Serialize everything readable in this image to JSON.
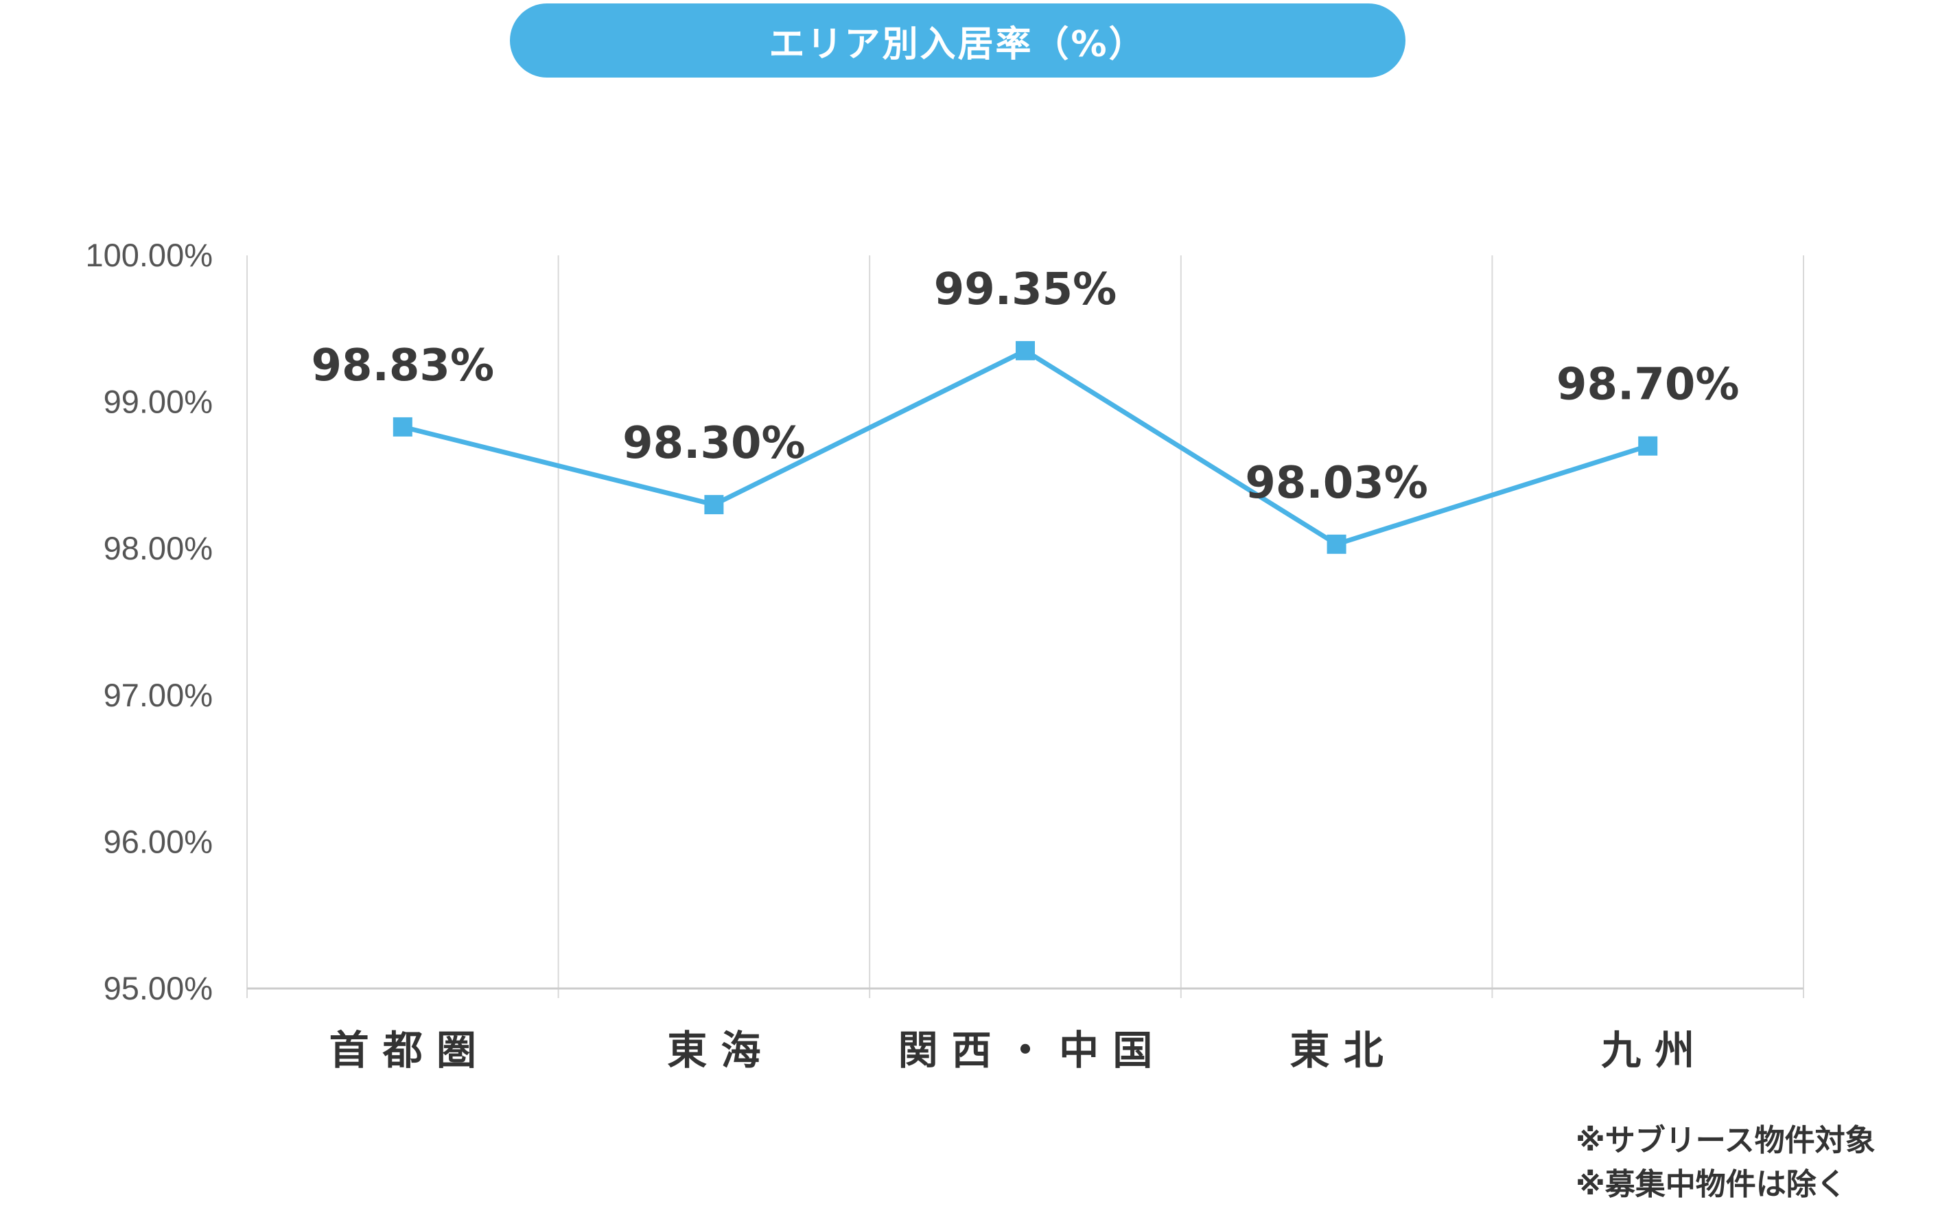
{
  "title": "エリア別入居率（%）",
  "chart_data": {
    "type": "line",
    "categories": [
      "首都圏",
      "東海",
      "関西・中国",
      "東北",
      "九州"
    ],
    "category_labels": [
      "首 都 圏",
      "東 海",
      "関 西 ・ 中 国",
      "東 北",
      "九 州"
    ],
    "values": [
      98.83,
      98.3,
      99.35,
      98.03,
      98.7
    ],
    "data_labels": [
      "98.83%",
      "98.30%",
      "99.35%",
      "98.03%",
      "98.70%"
    ],
    "yticks": [
      95,
      96,
      97,
      98,
      99,
      100
    ],
    "ytick_labels": [
      "95.00%",
      "96.00%",
      "97.00%",
      "98.00%",
      "99.00%",
      "100.00%"
    ],
    "ylim": [
      95,
      100
    ],
    "grid": "vertical",
    "marker": "square",
    "line_color": "#4ab3e6",
    "grid_color": "#d9d9d9",
    "axis_color": "#cccccc"
  },
  "notes": [
    "※サブリース物件対象",
    "※募集中物件は除く"
  ]
}
